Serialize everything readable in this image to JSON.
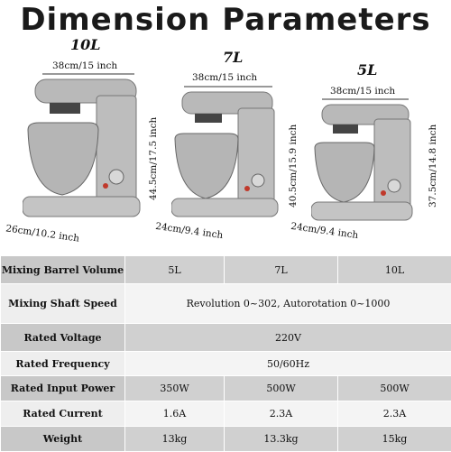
{
  "title": "Dimension Parameters",
  "mixers": [
    {
      "capacity": "10L",
      "width": "38cm/15 inch",
      "height": "44.5cm/17.5 inch",
      "depth": "26cm/10.2 inch"
    },
    {
      "capacity": "7L",
      "width": "38cm/15 inch",
      "height": "40.5cm/15.9 inch",
      "depth": "24cm/9.4 inch"
    },
    {
      "capacity": "5L",
      "width": "38cm/15 inch",
      "height": "37.5cm/14.8 inch",
      "depth": "24cm/9.4 inch"
    }
  ],
  "specs": {
    "mixing_barrel_volume": {
      "label": "Mixing Barrel Volume",
      "values": [
        "5L",
        "7L",
        "10L"
      ]
    },
    "mixing_shaft_speed": {
      "label": "Mixing Shaft Speed",
      "value": "Revolution 0~302, Autorotation 0~1000"
    },
    "rated_voltage": {
      "label": "Rated Voltage",
      "value": "220V"
    },
    "rated_frequency": {
      "label": "Rated Frequency",
      "value": "50/60Hz"
    },
    "rated_input_power": {
      "label": "Rated Input Power",
      "values": [
        "350W",
        "500W",
        "500W"
      ]
    },
    "rated_current": {
      "label": "Rated Current",
      "values": [
        "1.6A",
        "2.3A",
        "2.3A"
      ]
    },
    "weight": {
      "label": "Weight",
      "values": [
        "13kg",
        "13.3kg",
        "15kg"
      ]
    }
  }
}
